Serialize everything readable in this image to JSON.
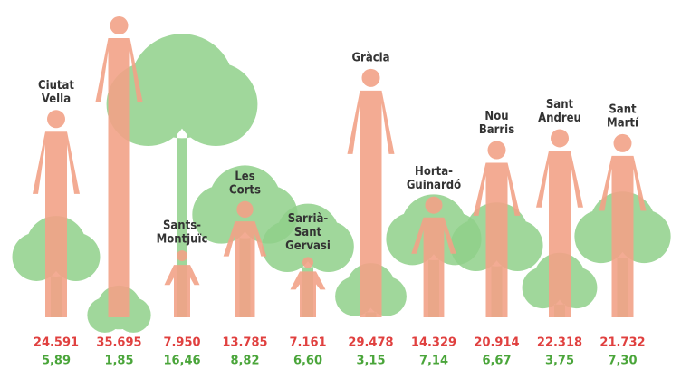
{
  "chart_data": {
    "type": "pictogram",
    "categories": [
      [
        "Ciutat",
        "Vella"
      ],
      null,
      [
        "Sants-",
        "Montjuïc"
      ],
      [
        "Les",
        "Corts"
      ],
      [
        "Sarrià-",
        "Sant",
        "Gervasi"
      ],
      [
        "Gràcia"
      ],
      [
        "Horta-",
        "Guinardó"
      ],
      [
        "Nou",
        "Barris"
      ],
      [
        "Sant",
        "Andreu"
      ],
      [
        "Sant",
        "Martí"
      ]
    ],
    "series": [
      {
        "color": "#f2a287",
        "label_color": "#e0403f",
        "values": [
          24591,
          35695,
          7950,
          13785,
          7161,
          29478,
          14329,
          20914,
          22318,
          21732
        ],
        "value_labels": [
          "24.591",
          "35.695",
          "7.950",
          "13.785",
          "7.161",
          "29.478",
          "14.329",
          "20.914",
          "22.318",
          "21.732"
        ]
      },
      {
        "color": "#8fd08a",
        "label_color": "#4aa53a",
        "values": [
          5.89,
          1.85,
          16.46,
          8.82,
          6.6,
          3.15,
          7.14,
          6.67,
          3.75,
          7.3
        ],
        "value_labels": [
          "5,89",
          "1,85",
          "16,46",
          "8,82",
          "6,60",
          "3,15",
          "7,14",
          "6,67",
          "3,75",
          "7,30"
        ]
      }
    ]
  }
}
